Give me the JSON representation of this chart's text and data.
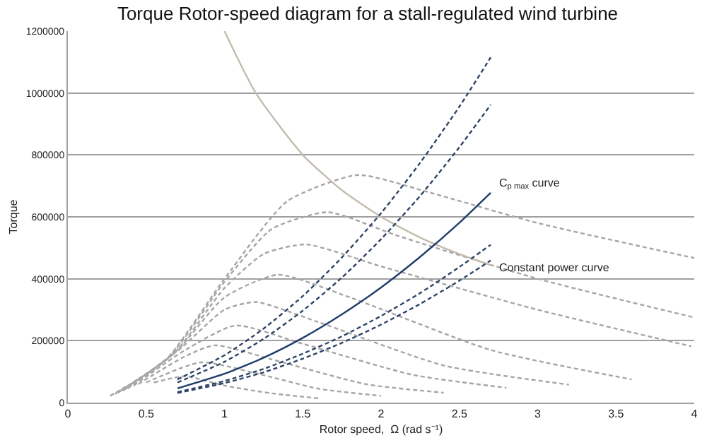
{
  "chart_data": {
    "type": "line",
    "title": "Torque Rotor-speed diagram for a stall-regulated wind turbine",
    "xlabel": "Rotor speed,  Ω (rad s⁻¹)",
    "ylabel": "Torque",
    "xlim": [
      0,
      4
    ],
    "xticks": [
      0,
      0.5,
      1,
      1.5,
      2,
      2.5,
      3,
      3.5,
      4
    ],
    "ylim": [
      0,
      1200000
    ],
    "yticks": [
      0,
      200000,
      400000,
      600000,
      800000,
      1000000,
      1200000
    ],
    "grid": "y",
    "marker": "none",
    "series": [
      {
        "color": "#a6a6a6",
        "line_style": "dashed",
        "x": [
          0.27,
          0.62,
          1.0,
          1.4,
          1.85,
          2.3,
          3.0,
          4.0
        ],
        "values": [
          22000,
          135000,
          400000,
          650000,
          735000,
          680000,
          580000,
          467000
        ]
      },
      {
        "color": "#a6a6a6",
        "line_style": "dashed",
        "x": [
          0.3,
          0.65,
          1.0,
          1.3,
          1.66,
          2.1,
          3.0,
          4.0
        ],
        "values": [
          28000,
          150000,
          390000,
          560000,
          615000,
          540000,
          400000,
          275000
        ]
      },
      {
        "color": "#a6a6a6",
        "line_style": "dashed",
        "x": [
          0.32,
          0.68,
          1.0,
          1.25,
          1.52,
          2.0,
          3.0,
          3.98
        ],
        "values": [
          32000,
          160000,
          370000,
          480000,
          511000,
          440000,
          300000,
          182000
        ]
      },
      {
        "color": "#a6a6a6",
        "line_style": "dashed",
        "x": [
          0.35,
          0.7,
          1.0,
          1.34,
          1.8,
          2.7,
          3.6
        ],
        "values": [
          38000,
          170000,
          340000,
          413000,
          340000,
          170000,
          75000
        ]
      },
      {
        "color": "#a6a6a6",
        "line_style": "dashed",
        "x": [
          0.38,
          0.72,
          1.0,
          1.2,
          1.6,
          2.4,
          3.2
        ],
        "values": [
          45000,
          175000,
          300000,
          325000,
          260000,
          120000,
          58000
        ]
      },
      {
        "color": "#a6a6a6",
        "line_style": "dashed",
        "x": [
          0.42,
          0.75,
          1.07,
          1.5,
          2.2,
          2.8
        ],
        "values": [
          55000,
          170000,
          249000,
          190000,
          90000,
          48000
        ]
      },
      {
        "color": "#a6a6a6",
        "line_style": "dashed",
        "x": [
          0.45,
          0.75,
          0.94,
          1.3,
          1.9,
          2.4
        ],
        "values": [
          60000,
          150000,
          185000,
          140000,
          60000,
          32000
        ]
      },
      {
        "color": "#a6a6a6",
        "line_style": "dashed",
        "x": [
          0.5,
          0.85,
          1.2,
          1.6,
          2.0
        ],
        "values": [
          65000,
          130000,
          95000,
          45000,
          22000
        ]
      },
      {
        "color": "#a6a6a6",
        "line_style": "dashed",
        "x": [
          0.55,
          0.75,
          1.0,
          1.3,
          1.6
        ],
        "values": [
          65000,
          85000,
          55000,
          30000,
          14000
        ]
      },
      {
        "color": "#c4bcae",
        "line_style": "solid",
        "x": [
          1.0,
          1.2,
          1.5,
          1.75,
          2.0,
          2.25,
          2.5,
          2.7
        ],
        "values": [
          1200000,
          1000000,
          800000,
          686000,
          600000,
          533000,
          480000,
          444000
        ]
      },
      {
        "color": "#2e4466",
        "line_style": "dashed",
        "x": [
          0.7,
          1.0,
          1.25,
          1.5,
          1.75,
          2.0,
          2.25,
          2.5,
          2.7
        ],
        "values": [
          75000,
          153000,
          239000,
          344000,
          469000,
          612000,
          775000,
          956000,
          1115000
        ]
      },
      {
        "color": "#2e4466",
        "line_style": "dashed",
        "x": [
          0.7,
          1.0,
          1.25,
          1.5,
          1.75,
          2.0,
          2.25,
          2.5,
          2.7
        ],
        "values": [
          65000,
          132000,
          206000,
          297000,
          404000,
          528000,
          668000,
          825000,
          962000
        ]
      },
      {
        "color": "#1f3d6b",
        "line_style": "solid",
        "x": [
          0.7,
          1.0,
          1.25,
          1.5,
          1.75,
          2.0,
          2.25,
          2.5,
          2.7
        ],
        "values": [
          46000,
          93000,
          145000,
          209000,
          285000,
          372000,
          471000,
          581000,
          678000
        ]
      },
      {
        "color": "#2e4466",
        "line_style": "dashed",
        "x": [
          0.7,
          1.0,
          1.25,
          1.5,
          1.75,
          2.0,
          2.25,
          2.5,
          2.7
        ],
        "values": [
          34000,
          70000,
          109000,
          158000,
          214000,
          280000,
          354000,
          438000,
          510000
        ]
      },
      {
        "color": "#2e4466",
        "line_style": "dashed",
        "x": [
          0.7,
          1.0,
          1.25,
          1.5,
          1.75,
          2.0,
          2.25,
          2.5,
          2.7
        ],
        "values": [
          31000,
          63000,
          98000,
          142000,
          193000,
          252000,
          319000,
          394000,
          459000
        ]
      }
    ],
    "annotations": [
      {
        "text": "C$_{p max}$ curve",
        "x": 2.7,
        "y": 678000
      },
      {
        "text": "Constant power curve",
        "x": 2.7,
        "y": 444000
      }
    ]
  }
}
